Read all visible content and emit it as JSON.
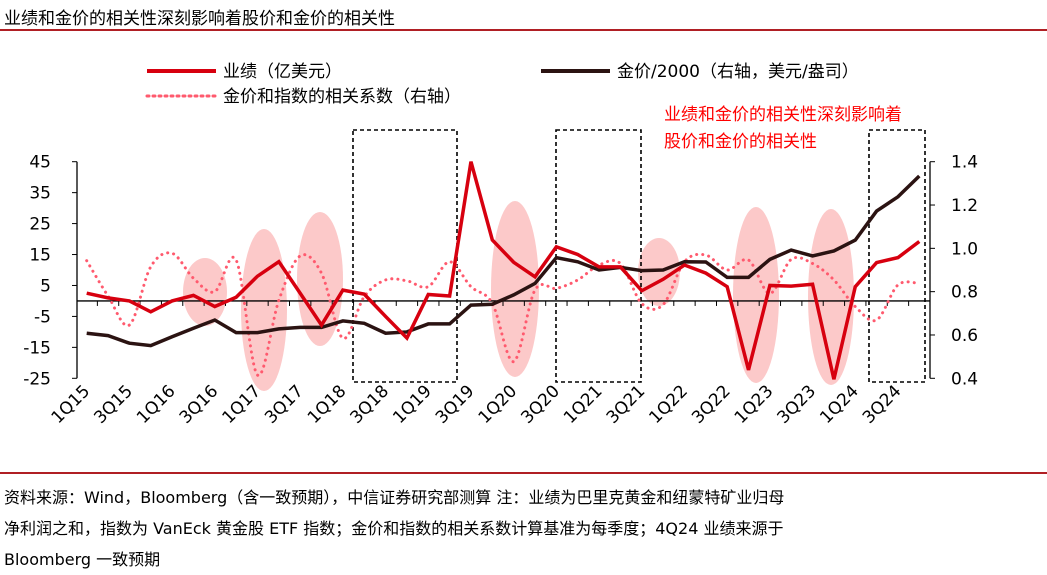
{
  "header": {
    "title": "业绩和金价的相关性深刻影响着股价和金价的相关性"
  },
  "annotation": {
    "line1": "业绩和金价的相关性深刻影响着",
    "line2": "股价和金价的相关性",
    "color": "#ff0000"
  },
  "footer": {
    "line1": "资料来源：Wind，Bloomberg（含一致预期），中信证券研究部测算 注：业绩为巴里克黄金和纽蒙特矿业归母",
    "line2": "净利润之和，指数为 VanEck 黄金股 ETF 指数；金价和指数的相关系数计算基准为每季度；4Q24 业绩来源于",
    "line3": "Bloomberg 一致预期"
  },
  "chart_data": {
    "type": "line",
    "title": "",
    "categories": [
      "1Q15",
      "2Q15",
      "3Q15",
      "4Q15",
      "1Q16",
      "2Q16",
      "3Q16",
      "4Q16",
      "1Q17",
      "2Q17",
      "3Q17",
      "4Q17",
      "1Q18",
      "2Q18",
      "3Q18",
      "4Q18",
      "1Q19",
      "2Q19",
      "3Q19",
      "4Q19",
      "1Q20",
      "2Q20",
      "3Q20",
      "4Q20",
      "1Q21",
      "2Q21",
      "3Q21",
      "4Q21",
      "1Q22",
      "2Q22",
      "3Q22",
      "4Q22",
      "1Q23",
      "2Q23",
      "3Q23",
      "4Q23",
      "1Q24",
      "2Q24",
      "3Q24",
      "4Q24"
    ],
    "tick_labels": [
      "1Q15",
      "3Q15",
      "1Q16",
      "3Q16",
      "1Q17",
      "3Q17",
      "1Q18",
      "3Q18",
      "1Q19",
      "3Q19",
      "1Q20",
      "3Q20",
      "1Q21",
      "3Q21",
      "1Q22",
      "3Q22",
      "1Q23",
      "3Q23",
      "1Q24",
      "3Q24"
    ],
    "y_left": {
      "min": -25,
      "max": 45,
      "ticks": [
        "45",
        "35",
        "25",
        "15",
        "5",
        "-5",
        "-15",
        "-25"
      ]
    },
    "y_right": {
      "min": 0.4,
      "max": 1.4,
      "ticks": [
        "1.4",
        "1.2",
        "1.0",
        "0.8",
        "0.6",
        "0.4"
      ]
    },
    "legend_position": "top",
    "series": [
      {
        "name": "业绩（亿美元）",
        "axis": "left",
        "color": "#d7000f",
        "style": "solid",
        "values": [
          2.5,
          1.0,
          0,
          -3.5,
          0,
          1.8,
          -1.8,
          1.2,
          8,
          12.7,
          2.5,
          -7.8,
          3.5,
          2.2,
          -5,
          -12,
          2.1,
          1.6,
          45,
          19.7,
          12.5,
          7.8,
          17.5,
          15,
          11,
          11,
          3.3,
          7,
          11.6,
          9,
          4.6,
          -22.3,
          5,
          4.8,
          5.4,
          -25.3,
          4.6,
          12.4,
          14,
          19.2
        ]
      },
      {
        "name": "金价/2000（右轴，美元/盎司）",
        "axis": "right",
        "color": "#2b1312",
        "style": "solid",
        "values": [
          0.608,
          0.597,
          0.562,
          0.551,
          0.592,
          0.631,
          0.669,
          0.611,
          0.611,
          0.628,
          0.635,
          0.635,
          0.665,
          0.654,
          0.608,
          0.614,
          0.651,
          0.651,
          0.738,
          0.742,
          0.785,
          0.838,
          0.957,
          0.938,
          0.9,
          0.912,
          0.897,
          0.9,
          0.938,
          0.937,
          0.866,
          0.866,
          0.949,
          0.992,
          0.965,
          0.988,
          1.038,
          1.172,
          1.238,
          1.334
        ]
      },
      {
        "name": "金价和指数的相关系数（右轴）",
        "axis": "right",
        "color": "#ff5a6e",
        "style": "dotted",
        "values": [
          0.943,
          0.78,
          0.646,
          0.915,
          0.977,
          0.862,
          0.8,
          0.946,
          0.415,
          0.76,
          0.965,
          0.885,
          0.585,
          0.777,
          0.854,
          0.85,
          0.823,
          0.938,
          0.823,
          0.746,
          0.477,
          0.808,
          0.815,
          0.854,
          0.923,
          0.93,
          0.745,
          0.74,
          0.938,
          0.969,
          0.9,
          0.946,
          0.792,
          0.949,
          0.93,
          0.854,
          0.731,
          0.669,
          0.831,
          0.838
        ]
      }
    ]
  }
}
